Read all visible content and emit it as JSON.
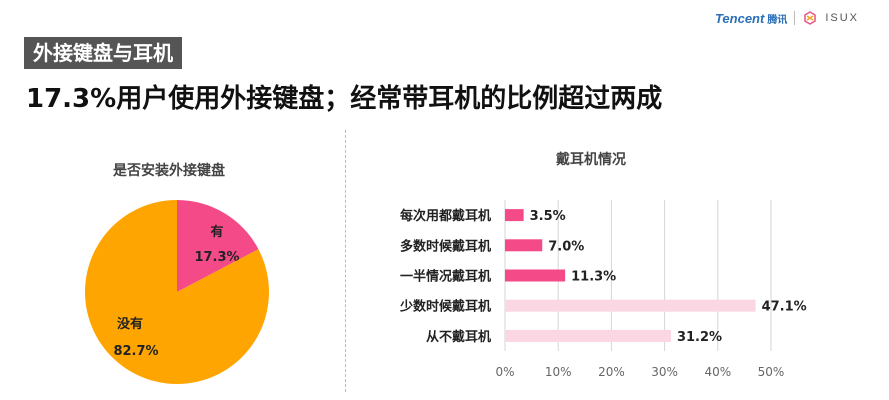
{
  "brand": {
    "tencent": "Tencent",
    "tencent_cn": "腾讯",
    "isux": "ISUX"
  },
  "tag": "外接键盘与耳机",
  "headline": "17.3%用户使用外接键盘；经常带耳机的比例超过两成",
  "chart_data": [
    {
      "type": "pie",
      "title": "是否安装外接键盘",
      "slices": [
        {
          "label": "有",
          "value": 17.3,
          "display": "17.3%",
          "color": "#f54a88"
        },
        {
          "label": "没有",
          "value": 82.7,
          "display": "82.7%",
          "color": "#ffa502"
        }
      ]
    },
    {
      "type": "bar",
      "orientation": "horizontal",
      "title": "戴耳机情况",
      "categories": [
        "每次用都戴耳机",
        "多数时候戴耳机",
        "一半情况戴耳机",
        "少数时候戴耳机",
        "从不戴耳机"
      ],
      "values": [
        3.5,
        7.0,
        11.3,
        47.1,
        31.2
      ],
      "value_labels": [
        "3.5%",
        "7.0%",
        "11.3%",
        "47.1%",
        "31.2%"
      ],
      "colors": [
        "#f54a88",
        "#f54a88",
        "#f54a88",
        "#fbd6e3",
        "#fbd6e3"
      ],
      "xlim": [
        0,
        50
      ],
      "xticks": [
        "0%",
        "10%",
        "20%",
        "30%",
        "40%",
        "50%"
      ],
      "grid": "vertical"
    }
  ]
}
